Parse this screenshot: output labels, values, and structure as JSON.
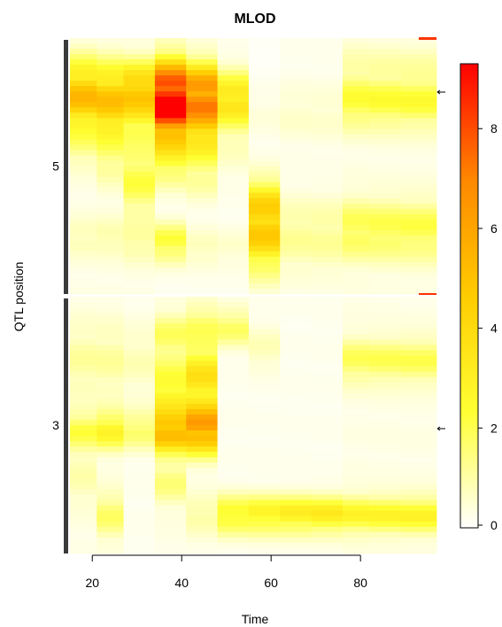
{
  "chart_data": {
    "type": "heatmap",
    "title": "MLOD",
    "xlabel": "Time",
    "ylabel": "QTL position",
    "xlim": [
      15,
      97
    ],
    "x_ticks": [
      "20",
      "40",
      "60",
      "80"
    ],
    "x_tick_values": [
      20,
      40,
      60,
      80
    ],
    "chromosome_labels": [
      "5",
      "3"
    ],
    "colorbar": {
      "range": [
        0,
        9.3
      ],
      "ticks": [
        "0",
        "2",
        "4",
        "6",
        "8"
      ],
      "tick_values": [
        0,
        2,
        4,
        6,
        8
      ],
      "colors": [
        "#ffffff",
        "#ffff33",
        "#ffcc00",
        "#ff8800",
        "#ff0000"
      ]
    },
    "marker_color": "#ff3300",
    "chromosomes": [
      {
        "name": "5",
        "peak_time": 40,
        "peak_lod": 9.2,
        "time_blocks": [
          {
            "t0": 15,
            "t1": 21,
            "base": 0.3,
            "bumps": [
              {
                "c": 0.2,
                "w": 0.08,
                "h": 4.2
              },
              {
                "c": 0.3,
                "w": 0.06,
                "h": 1.6
              },
              {
                "c": 0.42,
                "w": 0.06,
                "h": 1.0
              },
              {
                "c": 0.78,
                "w": 0.05,
                "h": 0.6
              }
            ]
          },
          {
            "t0": 21,
            "t1": 27,
            "base": 0.3,
            "bumps": [
              {
                "c": 0.21,
                "w": 0.08,
                "h": 4.0
              },
              {
                "c": 0.32,
                "w": 0.06,
                "h": 1.8
              },
              {
                "c": 0.45,
                "w": 0.08,
                "h": 1.2
              },
              {
                "c": 0.78,
                "w": 0.05,
                "h": 0.7
              }
            ]
          },
          {
            "t0": 27,
            "t1": 34,
            "base": 0.3,
            "bumps": [
              {
                "c": 0.2,
                "w": 0.07,
                "h": 4.6
              },
              {
                "c": 0.33,
                "w": 0.06,
                "h": 1.6
              },
              {
                "c": 0.55,
                "w": 0.1,
                "h": 1.8
              },
              {
                "c": 0.8,
                "w": 0.05,
                "h": 0.8
              }
            ]
          },
          {
            "t0": 34,
            "t1": 41,
            "base": 0.2,
            "bumps": [
              {
                "c": 0.22,
                "w": 0.09,
                "h": 9.2
              },
              {
                "c": 0.36,
                "w": 0.07,
                "h": 3.5
              },
              {
                "c": 0.5,
                "w": 0.06,
                "h": 1.6
              },
              {
                "c": 0.8,
                "w": 0.05,
                "h": 2.2
              }
            ]
          },
          {
            "t0": 41,
            "t1": 48,
            "base": 0.2,
            "bumps": [
              {
                "c": 0.22,
                "w": 0.08,
                "h": 6.8
              },
              {
                "c": 0.38,
                "w": 0.08,
                "h": 3.0
              },
              {
                "c": 0.55,
                "w": 0.06,
                "h": 0.8
              },
              {
                "c": 0.82,
                "w": 0.05,
                "h": 0.6
              }
            ]
          },
          {
            "t0": 48,
            "t1": 55,
            "base": 0.2,
            "bumps": [
              {
                "c": 0.24,
                "w": 0.07,
                "h": 3.6
              },
              {
                "c": 0.42,
                "w": 0.08,
                "h": 0.5
              },
              {
                "c": 0.82,
                "w": 0.05,
                "h": 0.4
              }
            ]
          },
          {
            "t0": 55,
            "t1": 62,
            "base": 0.1,
            "bumps": [
              {
                "c": 0.75,
                "w": 0.11,
                "h": 4.4
              },
              {
                "c": 0.63,
                "w": 0.06,
                "h": 1.2
              },
              {
                "c": 0.3,
                "w": 0.08,
                "h": 0.3
              }
            ]
          },
          {
            "t0": 62,
            "t1": 69,
            "base": 0.2,
            "bumps": [
              {
                "c": 0.77,
                "w": 0.1,
                "h": 1.0
              },
              {
                "c": 0.3,
                "w": 0.08,
                "h": 0.4
              }
            ]
          },
          {
            "t0": 69,
            "t1": 76,
            "base": 0.2,
            "bumps": [
              {
                "c": 0.77,
                "w": 0.1,
                "h": 1.0
              },
              {
                "c": 0.3,
                "w": 0.08,
                "h": 0.4
              }
            ]
          },
          {
            "t0": 76,
            "t1": 82,
            "base": 0.3,
            "bumps": [
              {
                "c": 0.25,
                "w": 0.07,
                "h": 2.0
              },
              {
                "c": 0.75,
                "w": 0.08,
                "h": 1.8
              },
              {
                "c": 0.1,
                "w": 0.06,
                "h": 0.5
              }
            ]
          },
          {
            "t0": 82,
            "t1": 89,
            "base": 0.3,
            "bumps": [
              {
                "c": 0.25,
                "w": 0.07,
                "h": 2.0
              },
              {
                "c": 0.75,
                "w": 0.08,
                "h": 1.8
              },
              {
                "c": 0.1,
                "w": 0.06,
                "h": 0.5
              }
            ]
          },
          {
            "t0": 89,
            "t1": 97,
            "base": 0.3,
            "bumps": [
              {
                "c": 0.25,
                "w": 0.07,
                "h": 2.0
              },
              {
                "c": 0.75,
                "w": 0.08,
                "h": 1.8
              },
              {
                "c": 0.1,
                "w": 0.06,
                "h": 0.5
              }
            ]
          }
        ]
      },
      {
        "name": "3",
        "peak_time": 44,
        "peak_lod": 6.0,
        "time_blocks": [
          {
            "t0": 15,
            "t1": 21,
            "base": 0.3,
            "bumps": [
              {
                "c": 0.52,
                "w": 0.05,
                "h": 1.8
              },
              {
                "c": 0.25,
                "w": 0.1,
                "h": 0.8
              },
              {
                "c": 0.7,
                "w": 0.08,
                "h": 0.6
              }
            ]
          },
          {
            "t0": 21,
            "t1": 27,
            "base": 0.3,
            "bumps": [
              {
                "c": 0.52,
                "w": 0.05,
                "h": 2.6
              },
              {
                "c": 0.85,
                "w": 0.06,
                "h": 1.4
              },
              {
                "c": 0.25,
                "w": 0.1,
                "h": 0.8
              }
            ]
          },
          {
            "t0": 27,
            "t1": 34,
            "base": 0.2,
            "bumps": [
              {
                "c": 0.52,
                "w": 0.05,
                "h": 1.6
              },
              {
                "c": 0.25,
                "w": 0.1,
                "h": 0.6
              }
            ]
          },
          {
            "t0": 34,
            "t1": 41,
            "base": 0.3,
            "bumps": [
              {
                "c": 0.53,
                "w": 0.05,
                "h": 5.0
              },
              {
                "c": 0.38,
                "w": 0.09,
                "h": 2.6
              },
              {
                "c": 0.15,
                "w": 0.06,
                "h": 1.4
              },
              {
                "c": 0.72,
                "w": 0.06,
                "h": 1.2
              }
            ]
          },
          {
            "t0": 41,
            "t1": 48,
            "base": 0.3,
            "bumps": [
              {
                "c": 0.52,
                "w": 0.06,
                "h": 6.0
              },
              {
                "c": 0.32,
                "w": 0.1,
                "h": 3.2
              },
              {
                "c": 0.1,
                "w": 0.05,
                "h": 1.2
              },
              {
                "c": 0.85,
                "w": 0.05,
                "h": 0.8
              }
            ]
          },
          {
            "t0": 48,
            "t1": 55,
            "base": 0.2,
            "bumps": [
              {
                "c": 0.85,
                "w": 0.05,
                "h": 2.6
              },
              {
                "c": 0.12,
                "w": 0.05,
                "h": 1.6
              }
            ]
          },
          {
            "t0": 55,
            "t1": 62,
            "base": 0.2,
            "bumps": [
              {
                "c": 0.85,
                "w": 0.05,
                "h": 2.8
              },
              {
                "c": 0.2,
                "w": 0.06,
                "h": 0.6
              }
            ]
          },
          {
            "t0": 62,
            "t1": 69,
            "base": 0.2,
            "bumps": [
              {
                "c": 0.85,
                "w": 0.05,
                "h": 3.0
              }
            ]
          },
          {
            "t0": 69,
            "t1": 76,
            "base": 0.2,
            "bumps": [
              {
                "c": 0.85,
                "w": 0.05,
                "h": 3.0
              }
            ]
          },
          {
            "t0": 76,
            "t1": 82,
            "base": 0.3,
            "bumps": [
              {
                "c": 0.85,
                "w": 0.05,
                "h": 2.4
              },
              {
                "c": 0.25,
                "w": 0.06,
                "h": 1.6
              }
            ]
          },
          {
            "t0": 82,
            "t1": 89,
            "base": 0.3,
            "bumps": [
              {
                "c": 0.85,
                "w": 0.05,
                "h": 2.4
              },
              {
                "c": 0.25,
                "w": 0.06,
                "h": 1.6
              }
            ]
          },
          {
            "t0": 89,
            "t1": 97,
            "base": 0.3,
            "bumps": [
              {
                "c": 0.85,
                "w": 0.05,
                "h": 2.4
              },
              {
                "c": 0.25,
                "w": 0.06,
                "h": 1.6
              }
            ]
          }
        ]
      }
    ]
  }
}
